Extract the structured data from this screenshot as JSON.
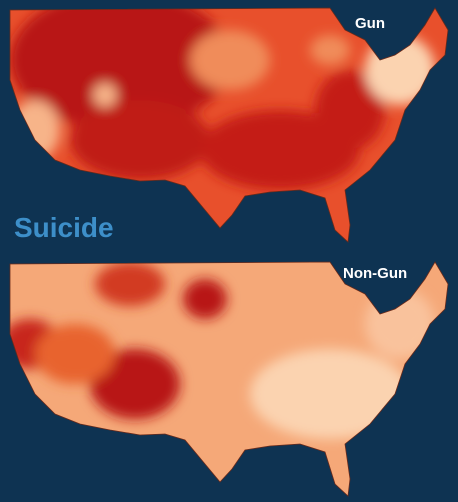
{
  "labels": {
    "gun": "Gun",
    "suicide": "Suicide",
    "non_gun": "Non-Gun"
  }
}
